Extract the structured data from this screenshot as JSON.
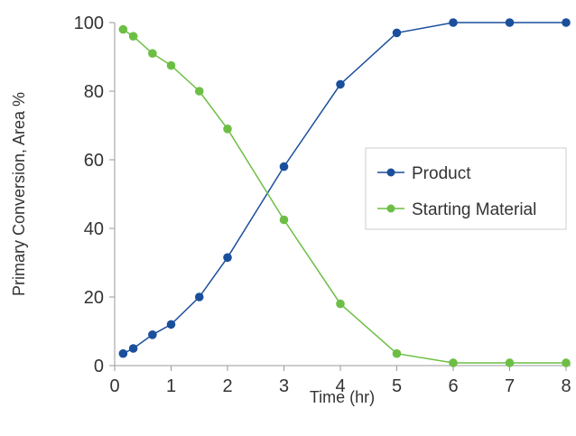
{
  "chart_data": {
    "type": "line",
    "title": "",
    "xlabel": "Time (hr)",
    "ylabel": "Primary Conversion, Area %",
    "xlim": [
      0,
      8
    ],
    "ylim": [
      0,
      100
    ],
    "xticks": [
      "0",
      "1",
      "2",
      "3",
      "4",
      "5",
      "6",
      "7",
      "8"
    ],
    "yticks": [
      "0",
      "20",
      "40",
      "60",
      "80",
      "100"
    ],
    "grid": false,
    "legend_position": "right",
    "series": [
      {
        "name": "Product",
        "color": "#1a4f9c",
        "x": [
          0.15,
          0.33,
          0.67,
          1.0,
          1.5,
          2.0,
          3.0,
          4.0,
          5.0,
          6.0,
          7.0,
          8.0
        ],
        "y": [
          3.5,
          5.0,
          9.0,
          12.0,
          20.0,
          31.5,
          58.0,
          82.0,
          97.0,
          100.0,
          100.0,
          100.0
        ]
      },
      {
        "name": "Starting Material",
        "color": "#6cbf44",
        "x": [
          0.15,
          0.33,
          0.67,
          1.0,
          1.5,
          2.0,
          3.0,
          4.0,
          5.0,
          6.0,
          7.0,
          8.0
        ],
        "y": [
          98.0,
          96.0,
          91.0,
          87.5,
          80.0,
          69.0,
          42.5,
          18.0,
          3.5,
          0.8,
          0.8,
          0.8
        ]
      }
    ]
  }
}
